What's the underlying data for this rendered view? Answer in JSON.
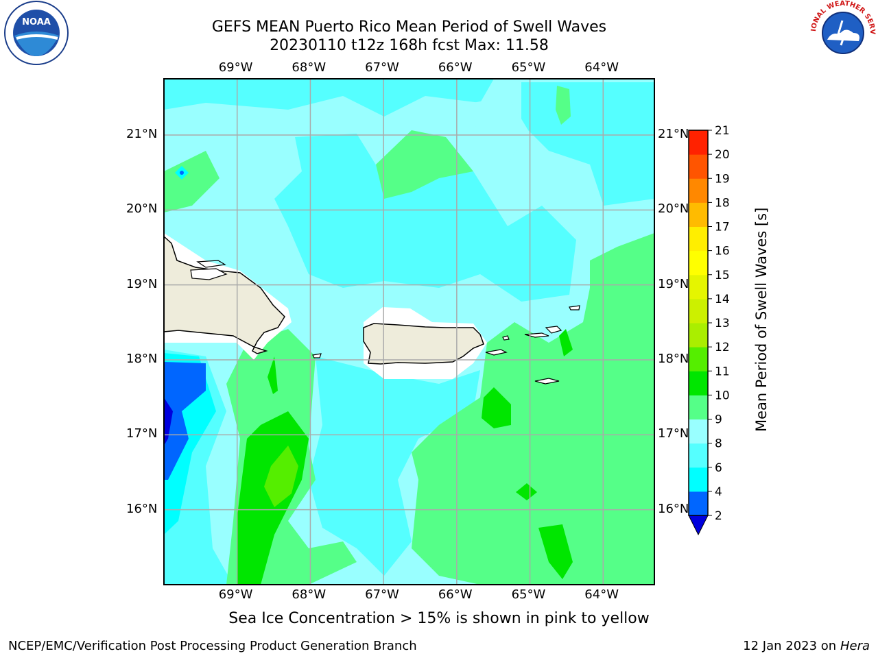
{
  "header": {
    "title": "GEFS MEAN Puerto Rico Mean Period of Swell Waves",
    "subtitle": "20230110 t12z 168h fcst   Max: 11.58"
  },
  "logos": {
    "left": "NOAA",
    "right": "NATIONAL WEATHER SERVICE"
  },
  "map": {
    "lon_labels": [
      "69°W",
      "68°W",
      "67°W",
      "66°W",
      "65°W",
      "64°W"
    ],
    "lat_labels": [
      "21°N",
      "20°N",
      "19°N",
      "18°N",
      "17°N",
      "16°N"
    ],
    "lon_range": [
      -70.0,
      -63.3
    ],
    "lat_range": [
      15.0,
      21.75
    ],
    "grid": true,
    "ocean_color": "#99ffff",
    "land_color": "#eeecdb"
  },
  "colorbar": {
    "label": "Mean Period of Swell Waves [s]",
    "ticks": [
      "2",
      "4",
      "6",
      "8",
      "9",
      "10",
      "11",
      "12",
      "13",
      "14",
      "15",
      "16",
      "17",
      "18",
      "19",
      "20",
      "21"
    ],
    "colors": [
      "#0066ff",
      "#00ffff",
      "#55ffff",
      "#99ffff",
      "#55ff88",
      "#00e600",
      "#55ee00",
      "#aaee00",
      "#ccf000",
      "#e5f500",
      "#ffff00",
      "#ffee00",
      "#ffbb00",
      "#ff8800",
      "#ff5500",
      "#ff2200"
    ],
    "extend_color": "#0000dd"
  },
  "footer": {
    "note": "Sea Ice Concentration > 15% is shown in pink to yellow",
    "credit": "NCEP/EMC/Verification Post Processing Product Generation Branch",
    "date": "12 Jan 2023 on",
    "host": "Hera"
  }
}
